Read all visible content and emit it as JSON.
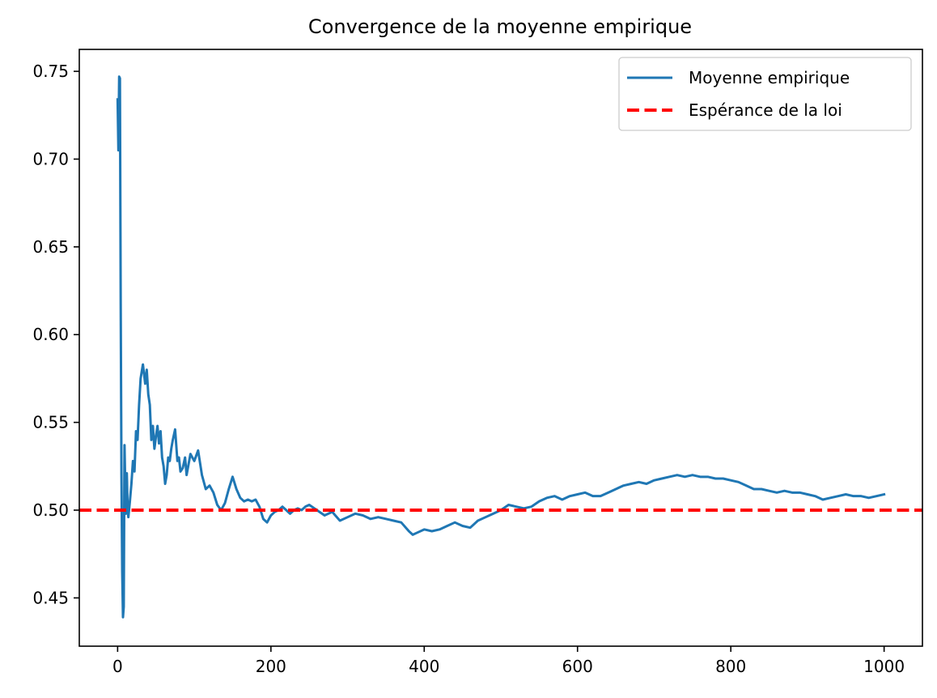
{
  "chart_data": {
    "type": "line",
    "title": "Convergence de la moyenne empirique",
    "xlabel": "",
    "ylabel": "",
    "xlim": [
      -50,
      1050
    ],
    "ylim": [
      0.4225,
      0.7625
    ],
    "x_ticks": [
      0,
      200,
      400,
      600,
      800,
      1000
    ],
    "x_tick_labels": [
      "0",
      "200",
      "400",
      "600",
      "800",
      "1000"
    ],
    "y_ticks": [
      0.45,
      0.5,
      0.55,
      0.6,
      0.65,
      0.7,
      0.75
    ],
    "y_tick_labels": [
      "0.45",
      "0.50",
      "0.55",
      "0.60",
      "0.65",
      "0.70",
      "0.75"
    ],
    "grid": false,
    "legend_position": "upper right",
    "series": [
      {
        "name": "Moyenne empirique",
        "color": "#1f77b4",
        "style": "solid",
        "x": [
          0,
          1,
          2,
          3,
          4,
          5,
          6,
          7,
          8,
          9,
          10,
          11,
          12,
          13,
          14,
          16,
          18,
          20,
          22,
          24,
          26,
          28,
          30,
          33,
          36,
          38,
          40,
          42,
          44,
          46,
          48,
          50,
          52,
          54,
          56,
          58,
          60,
          62,
          64,
          66,
          68,
          70,
          72,
          75,
          78,
          80,
          82,
          85,
          88,
          90,
          95,
          100,
          105,
          110,
          115,
          120,
          125,
          130,
          135,
          140,
          145,
          150,
          155,
          160,
          165,
          170,
          175,
          180,
          185,
          190,
          195,
          200,
          205,
          210,
          215,
          220,
          225,
          230,
          235,
          240,
          245,
          250,
          260,
          270,
          280,
          290,
          300,
          310,
          320,
          330,
          340,
          350,
          360,
          370,
          380,
          385,
          390,
          400,
          410,
          420,
          430,
          440,
          450,
          460,
          470,
          480,
          490,
          500,
          510,
          520,
          530,
          540,
          550,
          560,
          570,
          580,
          590,
          600,
          610,
          620,
          630,
          640,
          650,
          660,
          670,
          680,
          690,
          700,
          710,
          720,
          730,
          740,
          750,
          760,
          770,
          780,
          790,
          800,
          810,
          820,
          830,
          840,
          850,
          860,
          870,
          880,
          890,
          900,
          910,
          920,
          930,
          940,
          950,
          960,
          970,
          980,
          990,
          1000
        ],
        "y": [
          0.734,
          0.705,
          0.747,
          0.746,
          0.62,
          0.52,
          0.465,
          0.439,
          0.445,
          0.537,
          0.512,
          0.498,
          0.521,
          0.502,
          0.496,
          0.505,
          0.515,
          0.528,
          0.522,
          0.545,
          0.54,
          0.56,
          0.575,
          0.583,
          0.572,
          0.58,
          0.566,
          0.56,
          0.54,
          0.548,
          0.535,
          0.542,
          0.548,
          0.538,
          0.545,
          0.53,
          0.525,
          0.515,
          0.52,
          0.53,
          0.528,
          0.535,
          0.54,
          0.546,
          0.528,
          0.53,
          0.522,
          0.524,
          0.53,
          0.52,
          0.532,
          0.528,
          0.534,
          0.52,
          0.512,
          0.514,
          0.51,
          0.503,
          0.5,
          0.504,
          0.512,
          0.519,
          0.512,
          0.507,
          0.505,
          0.506,
          0.505,
          0.506,
          0.502,
          0.495,
          0.493,
          0.497,
          0.499,
          0.5,
          0.502,
          0.5,
          0.498,
          0.5,
          0.501,
          0.5,
          0.502,
          0.503,
          0.5,
          0.497,
          0.499,
          0.494,
          0.496,
          0.498,
          0.497,
          0.495,
          0.496,
          0.495,
          0.494,
          0.493,
          0.488,
          0.486,
          0.487,
          0.489,
          0.488,
          0.489,
          0.491,
          0.493,
          0.491,
          0.49,
          0.494,
          0.496,
          0.498,
          0.5,
          0.503,
          0.502,
          0.501,
          0.502,
          0.505,
          0.507,
          0.508,
          0.506,
          0.508,
          0.509,
          0.51,
          0.508,
          0.508,
          0.51,
          0.512,
          0.514,
          0.515,
          0.516,
          0.515,
          0.517,
          0.518,
          0.519,
          0.52,
          0.519,
          0.52,
          0.519,
          0.519,
          0.518,
          0.518,
          0.517,
          0.516,
          0.514,
          0.512,
          0.512,
          0.511,
          0.51,
          0.511,
          0.51,
          0.51,
          0.509,
          0.508,
          0.506,
          0.507,
          0.508,
          0.509,
          0.508,
          0.508,
          0.507,
          0.508,
          0.509
        ]
      },
      {
        "name": "Espérance de la loi",
        "color": "#ff0000",
        "style": "dashed",
        "type": "hline",
        "value": 0.5
      }
    ]
  }
}
